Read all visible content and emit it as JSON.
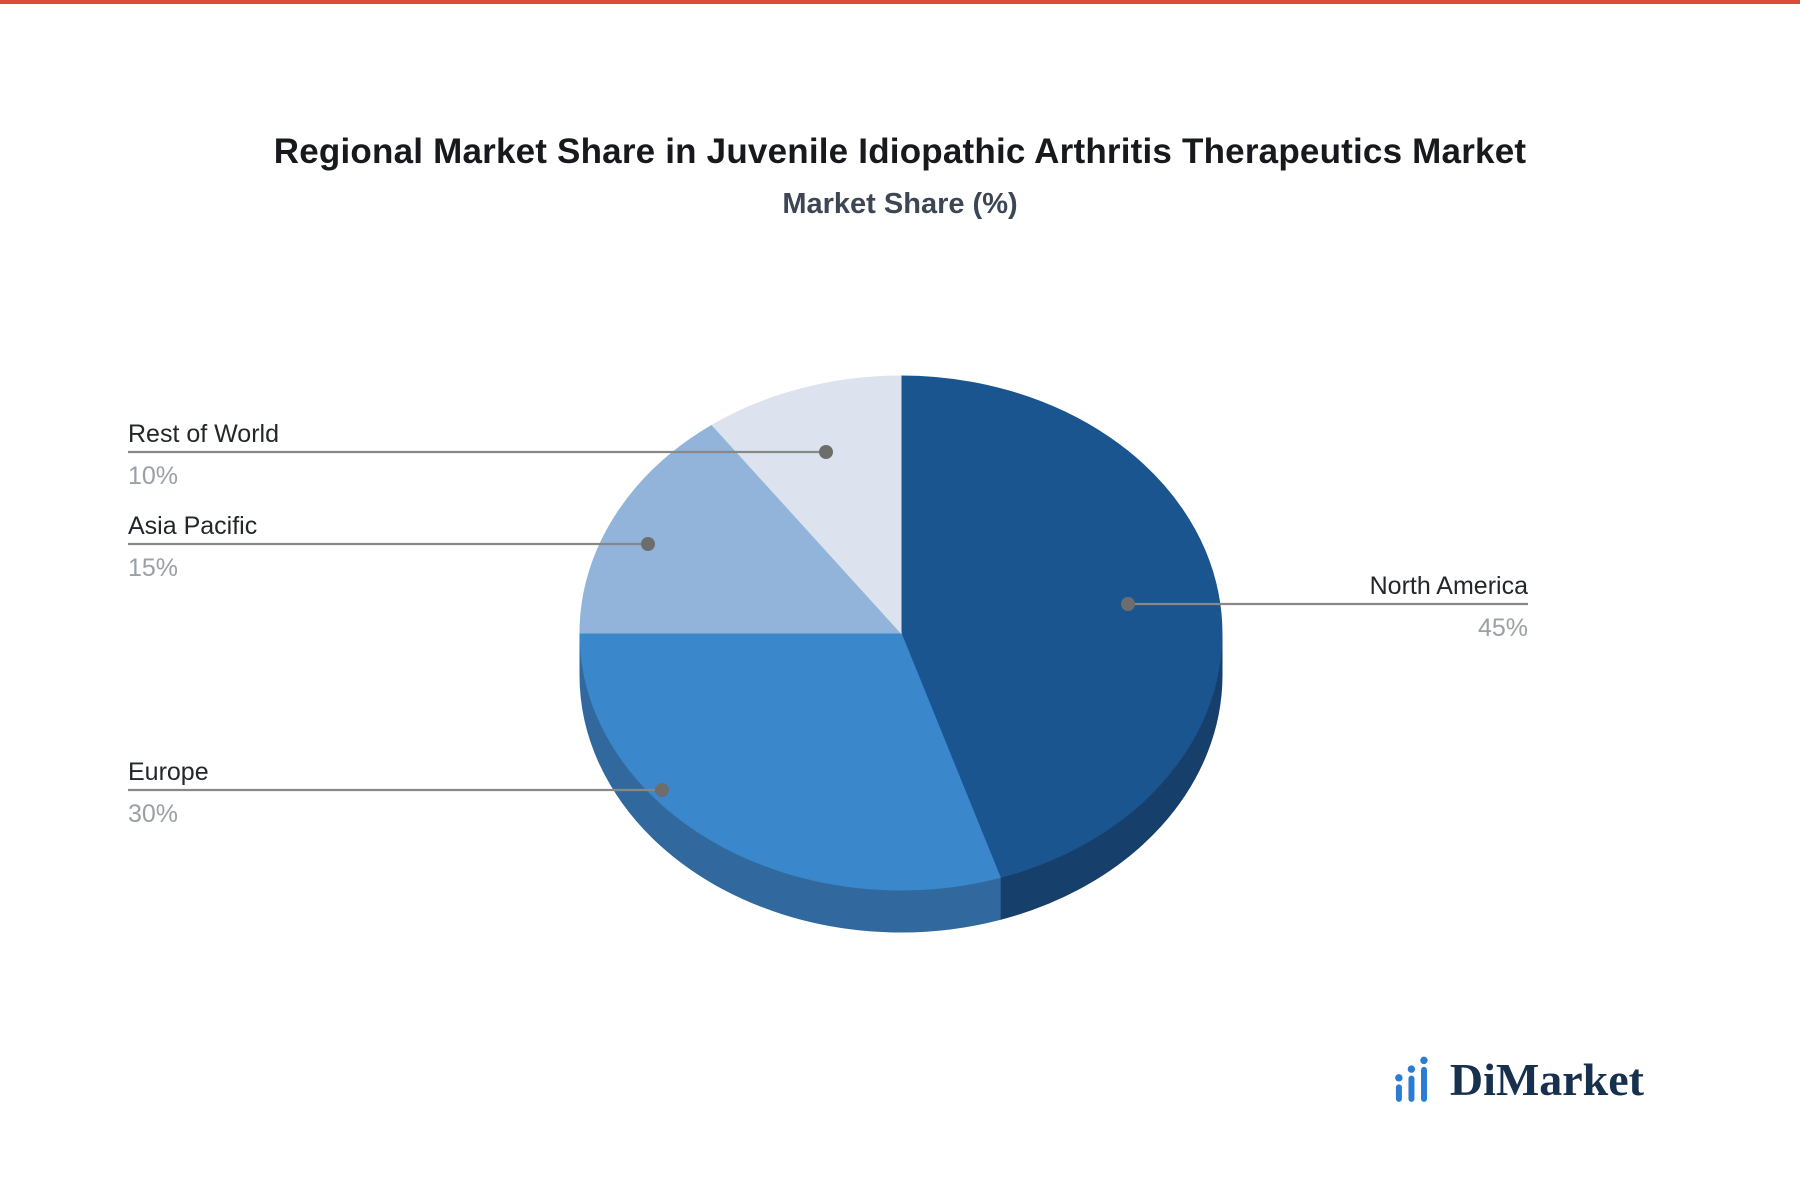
{
  "page": {
    "top_strip_color": "#dc4a3d",
    "background": "#ffffff"
  },
  "header": {
    "title": "Regional Market Share in Juvenile Idiopathic Arthritis Therapeutics Market",
    "subtitle": "Market Share (%)"
  },
  "chart_data": {
    "type": "pie",
    "style": "3d",
    "title": "Regional Market Share in Juvenile Idiopathic Arthritis Therapeutics Market",
    "subtitle": "Market Share (%)",
    "unit": "%",
    "start_angle_deg": 0,
    "clockwise": true,
    "legend_position": "leader-lines",
    "slices": [
      {
        "label": "North America",
        "value": 45,
        "display": "45%",
        "color": "#1b5590",
        "side_color": "#173f6b",
        "label_side": "right"
      },
      {
        "label": "Europe",
        "value": 30,
        "display": "30%",
        "color": "#3a87cb",
        "side_color": "#31699e",
        "label_side": "left"
      },
      {
        "label": "Asia Pacific",
        "value": 15,
        "display": "15%",
        "color": "#92b4da",
        "side_color": "#7a9cc2",
        "label_side": "left"
      },
      {
        "label": "Rest of World",
        "value": 10,
        "display": "10%",
        "color": "#dde3ee",
        "side_color": "#bcc7d8",
        "label_side": "left"
      }
    ],
    "leader_line_color": "#888888",
    "leader_dot_color": "#6d6d6d"
  },
  "branding": {
    "name": "DiMarket",
    "icon": "bar-chart-logo-icon",
    "text_color": "#16304d",
    "icon_color": "#2b7cd3"
  }
}
